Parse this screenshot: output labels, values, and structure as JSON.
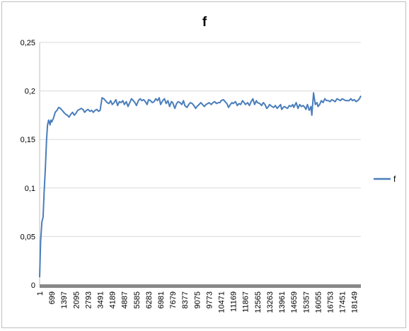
{
  "chart_data": {
    "type": "line",
    "title": "f",
    "xlabel": "",
    "ylabel": "",
    "ylim": [
      0,
      0.25
    ],
    "y_ticks": [
      "0",
      "0,05",
      "0,1",
      "0,15",
      "0,2",
      "0,25"
    ],
    "y_tick_values": [
      0,
      0.05,
      0.1,
      0.15,
      0.2,
      0.25
    ],
    "x_tick_labels": [
      "1",
      "699",
      "1397",
      "2095",
      "2793",
      "3491",
      "4189",
      "4887",
      "5585",
      "6283",
      "6981",
      "7679",
      "8377",
      "9075",
      "9773",
      "10471",
      "11169",
      "11867",
      "12565",
      "13263",
      "13961",
      "14659",
      "15357",
      "16055",
      "16753",
      "17451",
      "18149"
    ],
    "x_tick_values": [
      1,
      699,
      1397,
      2095,
      2793,
      3491,
      4189,
      4887,
      5585,
      6283,
      6981,
      7679,
      8377,
      9075,
      9773,
      10471,
      11169,
      11867,
      12565,
      13263,
      13961,
      14659,
      15357,
      16055,
      16753,
      17451,
      18149
    ],
    "xlim": [
      1,
      18530
    ],
    "grid": "horizontal",
    "legend_position": "right",
    "series": [
      {
        "name": "f",
        "color": "#4a7ebb",
        "x": [
          1,
          60,
          130,
          200,
          260,
          330,
          400,
          460,
          520,
          560,
          600,
          650,
          699,
          800,
          900,
          1000,
          1100,
          1200,
          1300,
          1397,
          1500,
          1600,
          1700,
          1800,
          1900,
          2000,
          2095,
          2200,
          2300,
          2400,
          2500,
          2600,
          2700,
          2793,
          2900,
          3000,
          3100,
          3200,
          3300,
          3400,
          3491,
          3600,
          3700,
          3800,
          3900,
          4000,
          4100,
          4189,
          4300,
          4400,
          4500,
          4600,
          4700,
          4800,
          4887,
          5000,
          5100,
          5200,
          5300,
          5400,
          5500,
          5585,
          5700,
          5800,
          5900,
          6000,
          6100,
          6200,
          6283,
          6400,
          6500,
          6600,
          6700,
          6800,
          6900,
          6981,
          7100,
          7200,
          7300,
          7400,
          7500,
          7600,
          7679,
          7800,
          7900,
          8000,
          8100,
          8200,
          8300,
          8377,
          8500,
          8600,
          8700,
          8800,
          8900,
          9000,
          9075,
          9200,
          9300,
          9400,
          9500,
          9600,
          9700,
          9773,
          9900,
          10000,
          10100,
          10200,
          10300,
          10400,
          10471,
          10600,
          10700,
          10800,
          10900,
          11000,
          11100,
          11169,
          11300,
          11400,
          11500,
          11600,
          11700,
          11800,
          11867,
          12000,
          12100,
          12200,
          12300,
          12400,
          12500,
          12565,
          12700,
          12800,
          12900,
          13000,
          13100,
          13200,
          13263,
          13400,
          13500,
          13600,
          13700,
          13800,
          13900,
          13961,
          14100,
          14200,
          14300,
          14400,
          14500,
          14600,
          14659,
          14800,
          14900,
          15000,
          15100,
          15200,
          15300,
          15357,
          15450,
          15550,
          15650,
          15700,
          15800,
          15900,
          16000,
          16055,
          16150,
          16250,
          16350,
          16450,
          16550,
          16650,
          16753,
          16850,
          16950,
          17050,
          17150,
          17250,
          17350,
          17451,
          17550,
          17650,
          17750,
          17850,
          17950,
          18050,
          18149,
          18250,
          18350,
          18450,
          18530
        ],
        "values": [
          0.008,
          0.045,
          0.065,
          0.07,
          0.095,
          0.12,
          0.15,
          0.165,
          0.17,
          0.168,
          0.165,
          0.17,
          0.168,
          0.172,
          0.178,
          0.18,
          0.183,
          0.182,
          0.18,
          0.178,
          0.176,
          0.175,
          0.173,
          0.176,
          0.178,
          0.175,
          0.177,
          0.18,
          0.181,
          0.182,
          0.181,
          0.178,
          0.18,
          0.181,
          0.179,
          0.18,
          0.178,
          0.18,
          0.181,
          0.179,
          0.18,
          0.193,
          0.192,
          0.19,
          0.188,
          0.187,
          0.19,
          0.186,
          0.188,
          0.191,
          0.185,
          0.189,
          0.188,
          0.19,
          0.186,
          0.189,
          0.184,
          0.188,
          0.192,
          0.19,
          0.188,
          0.185,
          0.19,
          0.192,
          0.19,
          0.191,
          0.189,
          0.186,
          0.191,
          0.19,
          0.188,
          0.189,
          0.192,
          0.19,
          0.193,
          0.186,
          0.19,
          0.192,
          0.187,
          0.19,
          0.184,
          0.189,
          0.188,
          0.182,
          0.187,
          0.189,
          0.188,
          0.186,
          0.19,
          0.185,
          0.183,
          0.186,
          0.188,
          0.187,
          0.185,
          0.182,
          0.184,
          0.186,
          0.188,
          0.186,
          0.184,
          0.186,
          0.187,
          0.188,
          0.186,
          0.188,
          0.189,
          0.187,
          0.188,
          0.188,
          0.19,
          0.191,
          0.189,
          0.187,
          0.183,
          0.186,
          0.188,
          0.187,
          0.189,
          0.185,
          0.187,
          0.186,
          0.19,
          0.188,
          0.186,
          0.188,
          0.185,
          0.189,
          0.192,
          0.186,
          0.19,
          0.188,
          0.187,
          0.185,
          0.188,
          0.186,
          0.182,
          0.184,
          0.186,
          0.184,
          0.183,
          0.185,
          0.182,
          0.184,
          0.186,
          0.181,
          0.184,
          0.183,
          0.182,
          0.185,
          0.184,
          0.186,
          0.183,
          0.188,
          0.182,
          0.186,
          0.184,
          0.185,
          0.183,
          0.181,
          0.186,
          0.18,
          0.184,
          0.175,
          0.198,
          0.186,
          0.188,
          0.184,
          0.186,
          0.19,
          0.188,
          0.192,
          0.19,
          0.19,
          0.189,
          0.191,
          0.19,
          0.189,
          0.192,
          0.191,
          0.19,
          0.192,
          0.191,
          0.19,
          0.19,
          0.19,
          0.192,
          0.19,
          0.191,
          0.189,
          0.19,
          0.192,
          0.195
        ]
      }
    ]
  }
}
